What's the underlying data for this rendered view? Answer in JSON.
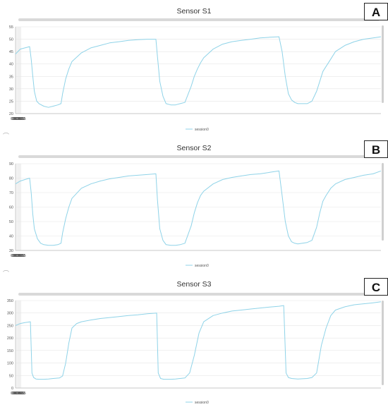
{
  "colors": {
    "series": "#8fd3e8",
    "grid": "#e6e6e6",
    "axis": "#bbbbbb"
  },
  "panels": [
    {
      "letter": "A",
      "title": "Sensor S1"
    },
    {
      "letter": "B",
      "title": "Sensor S2"
    },
    {
      "letter": "C",
      "title": "Sensor S3"
    }
  ],
  "chart_data": [
    {
      "type": "line",
      "title": "Sensor S1",
      "xlabel": "",
      "ylabel": "",
      "x_ticks": [
        "00:00",
        "00:05",
        "00:10",
        "00:15",
        "00:20",
        "00:25",
        "00:30",
        "00:35"
      ],
      "x_range_seconds": [
        0,
        2330
      ],
      "ylim": [
        20,
        55
      ],
      "y_ticks": [
        20,
        25,
        30,
        35,
        40,
        45,
        50,
        55
      ],
      "grid": true,
      "legend": "bottom-center",
      "series": [
        {
          "name": "session0",
          "x": [
            "00:00",
            "00:30",
            "01:00",
            "01:30",
            "01:40",
            "01:50",
            "02:00",
            "02:15",
            "02:30",
            "03:00",
            "03:30",
            "04:00",
            "04:30",
            "04:50",
            "05:00",
            "05:20",
            "05:40",
            "06:00",
            "07:00",
            "08:00",
            "09:00",
            "10:00",
            "11:00",
            "12:00",
            "13:00",
            "14:00",
            "14:55",
            "15:05",
            "15:20",
            "15:40",
            "16:00",
            "16:30",
            "17:00",
            "17:30",
            "18:00",
            "18:40",
            "19:00",
            "19:20",
            "19:40",
            "20:00",
            "21:00",
            "22:00",
            "23:00",
            "24:00",
            "25:00",
            "26:00",
            "27:00",
            "28:00",
            "28:20",
            "28:40",
            "29:00",
            "29:20",
            "29:40",
            "30:00",
            "30:30",
            "31:00",
            "31:30",
            "32:00",
            "32:20",
            "32:40",
            "33:00",
            "33:30",
            "34:00",
            "35:00",
            "36:00",
            "37:00",
            "38:00",
            "38:50"
          ],
          "y": [
            44,
            46,
            46.5,
            47,
            42,
            35,
            29,
            25,
            24,
            23,
            22.5,
            23,
            23.5,
            24,
            28,
            34,
            38,
            41,
            44.5,
            46.5,
            47.5,
            48.5,
            49,
            49.5,
            49.8,
            50,
            50,
            43,
            33,
            27,
            24,
            23.5,
            23.5,
            24,
            24.5,
            31,
            35,
            38,
            40.5,
            42.5,
            46,
            48,
            49,
            49.5,
            50,
            50.5,
            50.8,
            51,
            45,
            35,
            28,
            25.5,
            24.5,
            24,
            24,
            24,
            25,
            29,
            33,
            37,
            39,
            42,
            45,
            47.5,
            49,
            50,
            50.5,
            51
          ]
        }
      ]
    },
    {
      "type": "line",
      "title": "Sensor S2",
      "xlabel": "",
      "ylabel": "",
      "x_ticks": [
        "00:00",
        "00:05",
        "00:10",
        "00:15",
        "00:20",
        "00:25",
        "00:30",
        "00:35"
      ],
      "x_range_seconds": [
        0,
        2330
      ],
      "ylim": [
        30,
        90
      ],
      "y_ticks": [
        30,
        40,
        50,
        60,
        70,
        80,
        90
      ],
      "grid": true,
      "legend": "bottom-center",
      "series": [
        {
          "name": "session0",
          "x": [
            "00:00",
            "00:30",
            "01:00",
            "01:30",
            "01:40",
            "01:50",
            "02:00",
            "02:20",
            "02:40",
            "03:00",
            "03:30",
            "04:00",
            "04:30",
            "04:50",
            "05:00",
            "05:20",
            "05:40",
            "06:00",
            "07:00",
            "08:00",
            "09:00",
            "10:00",
            "11:00",
            "12:00",
            "13:00",
            "14:00",
            "14:55",
            "15:05",
            "15:20",
            "15:40",
            "16:00",
            "16:30",
            "17:00",
            "17:30",
            "18:00",
            "18:40",
            "19:00",
            "19:20",
            "19:40",
            "20:00",
            "21:00",
            "22:00",
            "23:00",
            "24:00",
            "25:00",
            "26:00",
            "27:00",
            "28:00",
            "28:20",
            "28:40",
            "29:00",
            "29:20",
            "29:40",
            "30:00",
            "30:30",
            "31:00",
            "31:30",
            "32:00",
            "32:20",
            "32:40",
            "33:00",
            "33:30",
            "34:00",
            "35:00",
            "36:00",
            "37:00",
            "38:00",
            "38:50"
          ],
          "y": [
            76,
            78,
            79,
            80,
            70,
            55,
            45,
            38,
            35,
            34,
            33.5,
            33.5,
            34,
            35,
            42,
            52,
            60,
            66,
            73,
            76,
            78,
            79.5,
            80.5,
            81.5,
            82,
            82.5,
            83,
            65,
            45,
            37,
            34,
            33.5,
            33.5,
            34,
            35,
            47,
            56,
            63,
            68,
            71,
            76,
            79,
            80.5,
            81.5,
            82.5,
            83,
            84,
            85,
            68,
            50,
            40,
            36,
            35,
            34.5,
            35,
            35.5,
            37,
            46,
            56,
            64,
            68,
            73,
            76,
            79,
            80.5,
            82,
            83,
            85
          ]
        }
      ]
    },
    {
      "type": "line",
      "title": "Sensor S3",
      "xlabel": "",
      "ylabel": "",
      "x_ticks": [
        "00:00",
        "00:05",
        "00:10",
        "00:15",
        "00:20",
        "00:25",
        "00:30",
        "00:35"
      ],
      "x_range_seconds": [
        0,
        2330
      ],
      "ylim": [
        0,
        350
      ],
      "y_ticks": [
        0,
        50,
        100,
        150,
        200,
        250,
        300,
        350
      ],
      "grid": true,
      "legend": "bottom-center",
      "series": [
        {
          "name": "session0",
          "x": [
            "00:00",
            "00:30",
            "01:00",
            "01:35",
            "01:45",
            "01:55",
            "02:10",
            "02:30",
            "03:00",
            "03:30",
            "04:00",
            "04:40",
            "05:00",
            "05:20",
            "05:40",
            "06:00",
            "06:30",
            "07:00",
            "08:00",
            "09:00",
            "10:00",
            "11:00",
            "12:00",
            "13:00",
            "14:00",
            "15:00",
            "15:10",
            "15:25",
            "15:45",
            "16:00",
            "16:30",
            "17:00",
            "17:30",
            "18:00",
            "18:30",
            "19:00",
            "19:30",
            "20:00",
            "21:00",
            "22:00",
            "23:00",
            "24:00",
            "25:00",
            "26:00",
            "27:00",
            "28:00",
            "28:30",
            "28:45",
            "29:00",
            "29:20",
            "30:00",
            "30:30",
            "31:00",
            "31:30",
            "32:00",
            "32:30",
            "33:00",
            "33:30",
            "34:00",
            "35:00",
            "36:00",
            "37:00",
            "38:00",
            "38:50"
          ],
          "y": [
            250,
            258,
            262,
            265,
            60,
            42,
            36,
            35,
            35,
            36,
            38,
            40,
            48,
            100,
            180,
            240,
            258,
            265,
            272,
            278,
            282,
            286,
            290,
            293,
            297,
            300,
            60,
            38,
            35,
            35,
            35,
            36,
            38,
            40,
            60,
            130,
            220,
            265,
            290,
            300,
            308,
            312,
            316,
            320,
            324,
            327,
            330,
            60,
            42,
            38,
            36,
            37,
            38,
            42,
            60,
            170,
            240,
            290,
            312,
            325,
            333,
            337,
            341,
            345
          ]
        }
      ]
    }
  ]
}
